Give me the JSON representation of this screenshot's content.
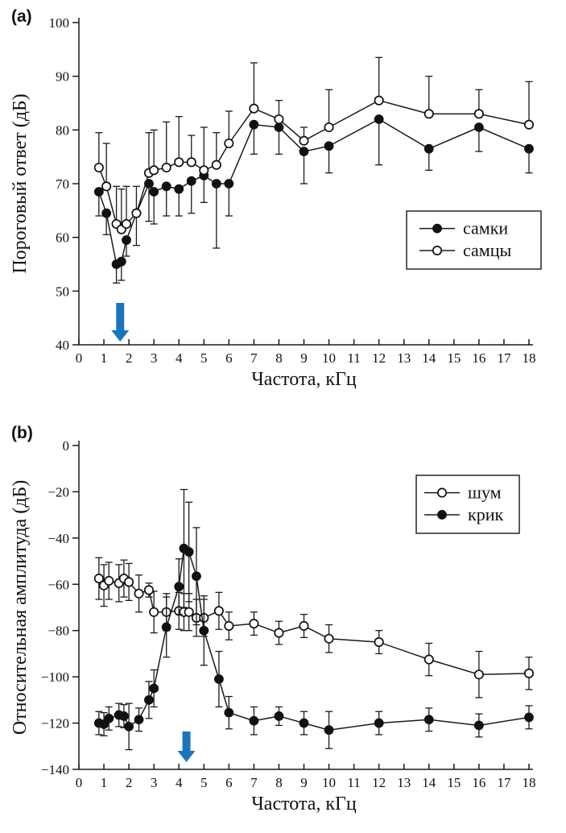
{
  "page": {
    "background": "#ffffff",
    "arrow_color": "#1b75bb"
  },
  "chart_data": [
    {
      "type": "line",
      "panel_label": "(a)",
      "title": "",
      "xlabel": "Частота, кГц",
      "ylabel": "Пороговый ответ (дБ)",
      "xlim": [
        0,
        18
      ],
      "ylim": [
        40,
        100
      ],
      "xticks": [
        0,
        1,
        2,
        3,
        4,
        5,
        6,
        7,
        8,
        9,
        10,
        11,
        12,
        13,
        14,
        15,
        16,
        17,
        18
      ],
      "yticks": [
        40,
        50,
        60,
        70,
        80,
        90,
        100
      ],
      "grid": false,
      "legend": {
        "position": "inside-middle-right",
        "entries": [
          "самки",
          "самцы"
        ]
      },
      "arrow": {
        "x_khz": 1.65,
        "color": "#1b75bb"
      },
      "x": [
        0.8,
        1.1,
        1.5,
        1.7,
        1.9,
        2.3,
        2.8,
        3.0,
        3.5,
        4.0,
        4.5,
        5.0,
        5.5,
        6.0,
        7,
        8,
        9,
        10,
        12,
        14,
        16,
        18
      ],
      "series": [
        {
          "name": "самки",
          "marker": "filled-circle",
          "errorbar_direction": "down",
          "values": [
            68.5,
            64.5,
            55,
            55.5,
            59.5,
            64.5,
            70,
            68.5,
            69.5,
            69,
            70.5,
            71.5,
            70,
            70,
            81,
            80.5,
            76,
            77,
            82,
            76.5,
            80.5,
            76.5
          ],
          "errors": [
            4.5,
            4,
            3.5,
            3.5,
            3,
            6,
            7,
            6,
            5.5,
            5,
            6,
            5,
            12,
            6,
            5.5,
            5,
            6,
            5,
            8.5,
            4,
            4.5,
            4.5
          ]
        },
        {
          "name": "самцы",
          "marker": "open-circle",
          "errorbar_direction": "up",
          "values": [
            73,
            69.5,
            62.5,
            61.5,
            62.5,
            64.5,
            72,
            72.5,
            73,
            74,
            74,
            72.5,
            73.5,
            77.5,
            84,
            82,
            78,
            80.5,
            85.5,
            83,
            83,
            81
          ],
          "errors": [
            6.5,
            8,
            7,
            7.5,
            7,
            5,
            7.5,
            7.5,
            8.5,
            8.5,
            5,
            8,
            6,
            6,
            8.5,
            3.5,
            2.5,
            7,
            8,
            7,
            4.5,
            8
          ]
        }
      ]
    },
    {
      "type": "line",
      "panel_label": "(b)",
      "title": "",
      "xlabel": "Частота, кГц",
      "ylabel": "Относительная амплитуда (дБ)",
      "xlim": [
        0,
        18
      ],
      "ylim": [
        -140,
        0
      ],
      "xticks": [
        0,
        1,
        2,
        3,
        4,
        5,
        6,
        7,
        8,
        9,
        10,
        11,
        12,
        13,
        14,
        15,
        16,
        17,
        18
      ],
      "yticks": [
        0,
        -20,
        -40,
        -60,
        -80,
        -100,
        -120,
        -140
      ],
      "grid": false,
      "legend": {
        "position": "inside-top-right",
        "entries": [
          "шум",
          "крик"
        ]
      },
      "arrow": {
        "x_khz": 4.3,
        "color": "#1b75bb"
      },
      "x": [
        0.8,
        1.0,
        1.2,
        1.6,
        1.8,
        2.0,
        2.4,
        2.8,
        3.0,
        3.5,
        4.0,
        4.2,
        4.4,
        4.7,
        5.0,
        5.6,
        6.0,
        7,
        8,
        9,
        10,
        12,
        14,
        16,
        18
      ],
      "series": [
        {
          "name": "шум",
          "marker": "open-circle",
          "errorbar_direction": "both",
          "values": [
            -57.5,
            -60.5,
            -58.5,
            -59.5,
            -57.5,
            -59,
            -64,
            -62.5,
            -72,
            -72,
            -71.5,
            -72,
            -72,
            -74.5,
            -74.5,
            -71.5,
            -78,
            -77,
            -81,
            -78,
            -83.5,
            -85,
            -92.5,
            -99,
            -98.5
          ],
          "errors": [
            9,
            9,
            8,
            8,
            8,
            8,
            8,
            3,
            9,
            8,
            8,
            8,
            8,
            8,
            8,
            8,
            6,
            5,
            5,
            5,
            6,
            5,
            7,
            10,
            7
          ]
        },
        {
          "name": "крик",
          "marker": "filled-circle",
          "errorbar_direction": "both",
          "values": [
            -120,
            -120.5,
            -118,
            -116.5,
            -117,
            -121.5,
            -118.5,
            -110,
            -105,
            -78.5,
            -61,
            -44.5,
            -46,
            -56.5,
            -80,
            -101,
            -115.5,
            -119,
            -117,
            -120,
            -123,
            -120,
            -118.5,
            -121,
            -117.5
          ],
          "errors": [
            5,
            5,
            5,
            5,
            5,
            10,
            5,
            8,
            8,
            13,
            12,
            25.5,
            21.5,
            21,
            15,
            12,
            7,
            6,
            4,
            5,
            8,
            5,
            5,
            5,
            5
          ]
        }
      ]
    }
  ]
}
